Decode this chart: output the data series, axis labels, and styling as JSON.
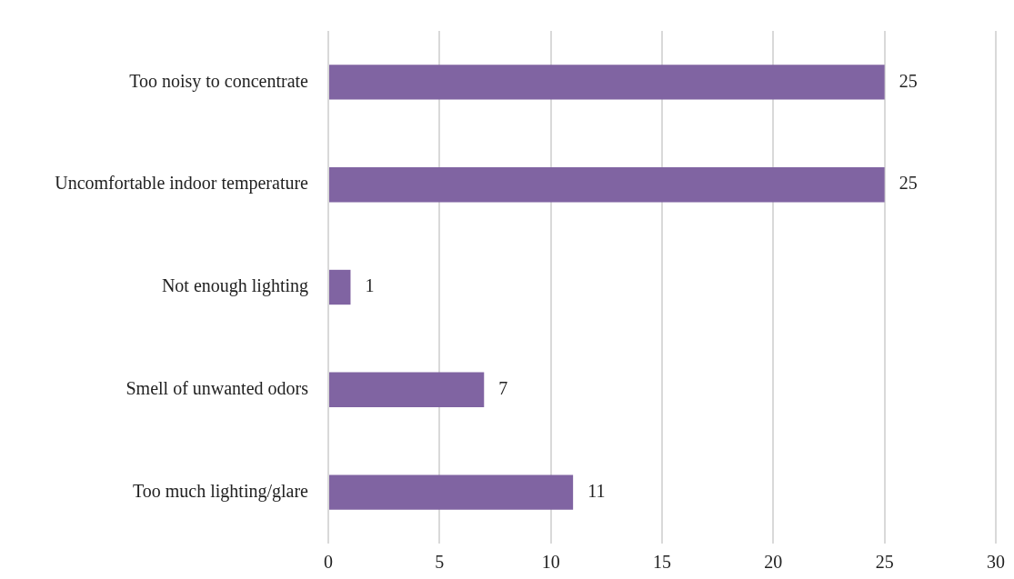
{
  "chart_data": {
    "type": "bar",
    "orientation": "horizontal",
    "categories": [
      "Too noisy to concentrate",
      "Uncomfortable indoor temperature",
      "Not enough lighting",
      "Smell of unwanted odors",
      "Too much lighting/glare"
    ],
    "values": [
      25,
      25,
      1,
      7,
      11
    ],
    "color": "#8064a2",
    "xlim": [
      0,
      30
    ],
    "xticks": [
      0,
      5,
      10,
      15,
      20,
      25,
      30
    ],
    "grid": "x",
    "data_labels": true,
    "legend": false
  }
}
